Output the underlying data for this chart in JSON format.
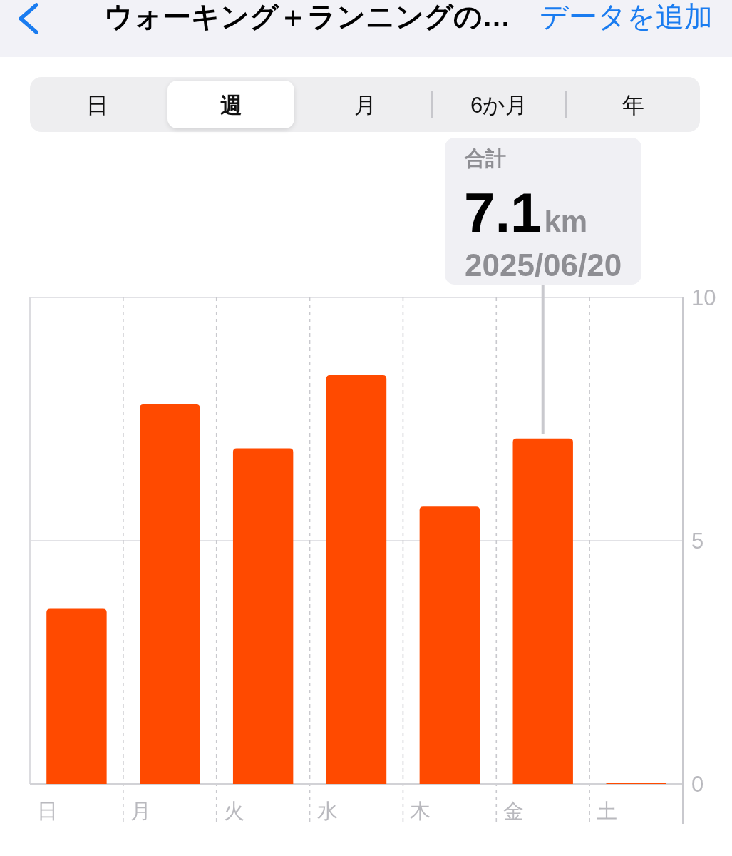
{
  "chart_data": {
    "type": "bar",
    "title": "ウォーキング＋ランニングの…",
    "categories": [
      "日",
      "月",
      "火",
      "水",
      "木",
      "金",
      "土"
    ],
    "values": [
      3.6,
      7.8,
      6.9,
      8.4,
      5.7,
      7.1,
      0.03
    ],
    "color": "#ff4a00",
    "ylim": [
      0,
      10
    ],
    "yticks": [
      0,
      5,
      10
    ],
    "grid": true,
    "annotations": [
      "データを追加",
      "日",
      "週",
      "月",
      "6か月",
      "年",
      "合計",
      "7.1km",
      "2025/06/20"
    ]
  }
}
